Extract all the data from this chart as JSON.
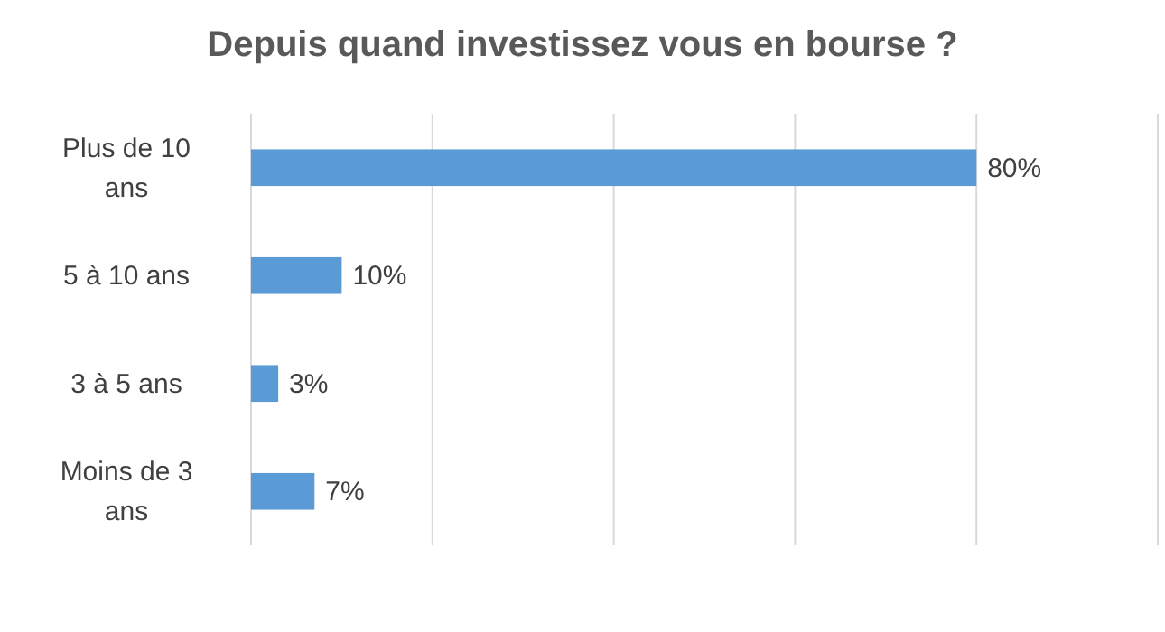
{
  "chart_data": {
    "type": "bar",
    "orientation": "horizontal",
    "title": "Depuis quand investissez vous en bourse ?",
    "categories": [
      "Plus de 10 ans",
      "5 à 10 ans",
      "3 à 5 ans",
      "Moins de 3 ans"
    ],
    "values": [
      80,
      10,
      3,
      7
    ],
    "value_labels": [
      "80%",
      "10%",
      "3%",
      "7%"
    ],
    "color": "#5b9bd5",
    "xlim": [
      0,
      100
    ],
    "xticks": [
      {
        "value": 0,
        "label": null
      },
      {
        "value": 20,
        "label": null
      },
      {
        "value": 40,
        "label": null
      },
      {
        "value": 60,
        "label": null
      },
      {
        "value": 80,
        "label": null
      },
      {
        "value": 100,
        "label": null
      }
    ],
    "grid": "x",
    "tick_labels": "y"
  }
}
